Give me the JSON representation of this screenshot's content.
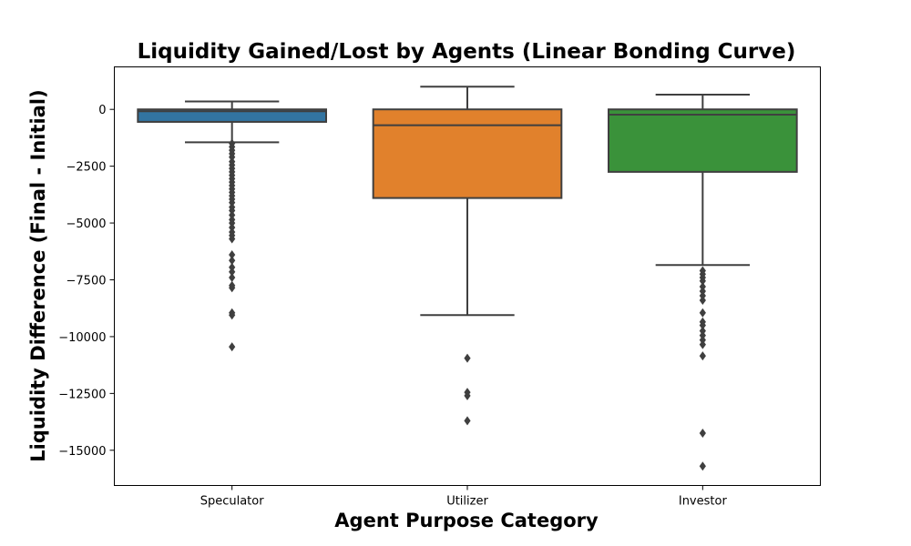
{
  "chart_data": {
    "type": "box",
    "title": "Liquidity Gained/Lost by Agents (Linear Bonding Curve)",
    "xlabel": "Agent Purpose Category",
    "ylabel": "Liquidity Difference (Final - Initial)",
    "ylim": [
      -16550,
      1870
    ],
    "yticks": [
      0,
      -2500,
      -5000,
      -7500,
      -10000,
      -12500,
      -15000
    ],
    "ytick_labels": [
      "0",
      "−2500",
      "−5000",
      "−7500",
      "−10000",
      "−12500",
      "−15000"
    ],
    "grid": false,
    "categories": [
      "Speculator",
      "Utilizer",
      "Investor"
    ],
    "boxes": [
      {
        "category": "Speculator",
        "color": "#3274a1",
        "q1": -550,
        "median": -80,
        "q3": 0,
        "whisker_low": -1450,
        "whisker_high": 350,
        "outliers": [
          -1500,
          -1650,
          -1800,
          -1950,
          -2100,
          -2300,
          -2450,
          -2600,
          -2750,
          -2900,
          -3050,
          -3200,
          -3350,
          -3500,
          -3650,
          -3800,
          -3950,
          -4100,
          -4300,
          -4450,
          -4650,
          -4850,
          -5000,
          -5200,
          -5400,
          -5550,
          -5700,
          -6400,
          -6650,
          -6950,
          -7150,
          -7400,
          -7750,
          -7850,
          -8950,
          -9050,
          -10450
        ]
      },
      {
        "category": "Utilizer",
        "color": "#e1812c",
        "q1": -3900,
        "median": -700,
        "q3": 0,
        "whisker_low": -9050,
        "whisker_high": 1000,
        "outliers": [
          -10950,
          -12450,
          -12600,
          -13700
        ]
      },
      {
        "category": "Investor",
        "color": "#3a923a",
        "q1": -2750,
        "median": -230,
        "q3": 0,
        "whisker_low": -6850,
        "whisker_high": 650,
        "outliers": [
          -7100,
          -7250,
          -7400,
          -7550,
          -7800,
          -8000,
          -8200,
          -8400,
          -8950,
          -9350,
          -9500,
          -9750,
          -9950,
          -10150,
          -10350,
          -10850,
          -14250,
          -15700
        ]
      }
    ]
  }
}
